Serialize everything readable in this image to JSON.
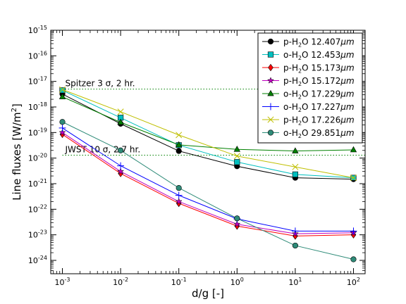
{
  "chart_data": {
    "type": "line",
    "xscale": "log",
    "yscale": "log",
    "xlabel": "d/g [-]",
    "ylabel_main": "Line fluxes [W/m",
    "ylabel_sup": "2",
    "ylabel_tail": "]",
    "xlim": [
      0.001,
      100
    ],
    "ylim": [
      3e-25,
      1e-15
    ],
    "xticks": [
      {
        "value": 0.001,
        "base": "10",
        "exp": "-3"
      },
      {
        "value": 0.01,
        "base": "10",
        "exp": "-2"
      },
      {
        "value": 0.1,
        "base": "10",
        "exp": "-1"
      },
      {
        "value": 1,
        "base": "10",
        "exp": "0"
      },
      {
        "value": 10,
        "base": "10",
        "exp": "1"
      },
      {
        "value": 100,
        "base": "10",
        "exp": "2"
      }
    ],
    "yticks": [
      {
        "value": 1e-24,
        "base": "10",
        "exp": "-24"
      },
      {
        "value": 1e-23,
        "base": "10",
        "exp": "-23"
      },
      {
        "value": 1e-22,
        "base": "10",
        "exp": "-22"
      },
      {
        "value": 1e-21,
        "base": "10",
        "exp": "-21"
      },
      {
        "value": 1e-20,
        "base": "10",
        "exp": "-20"
      },
      {
        "value": 1e-19,
        "base": "10",
        "exp": "-19"
      },
      {
        "value": 1e-18,
        "base": "10",
        "exp": "-18"
      },
      {
        "value": 1e-17,
        "base": "10",
        "exp": "-17"
      },
      {
        "value": 1e-16,
        "base": "10",
        "exp": "-16"
      },
      {
        "value": 1e-15,
        "base": "10",
        "exp": "-15"
      }
    ],
    "x": [
      0.001,
      0.01,
      0.1,
      1,
      10,
      100
    ],
    "reference_lines": [
      {
        "label": "Spitzer 3 σ, 2 hr.",
        "y": 5e-18,
        "color": "#008000"
      },
      {
        "label": "JWST 10 σ, 2.7 hr.",
        "y": 1.3e-20,
        "color": "#008000"
      }
    ],
    "legend_position": "top-right",
    "series": [
      {
        "prefix": "p-H",
        "sub": "2",
        "mid": "O 12.407",
        "unit": "μm",
        "color": "#000000",
        "marker": "circle",
        "values": [
          3.2e-18,
          2.2e-19,
          1.9e-20,
          4.8e-21,
          1.7e-21,
          1.5e-21
        ]
      },
      {
        "prefix": "o-H",
        "sub": "2",
        "mid": "O 12.453",
        "unit": "μm",
        "color": "#00bfbf",
        "marker": "square",
        "values": [
          4.5e-18,
          3.8e-19,
          3.2e-20,
          7e-21,
          2.3e-21,
          1.7e-21
        ]
      },
      {
        "prefix": "p-H",
        "sub": "2",
        "mid": "O 15.173",
        "unit": "μm",
        "color": "#ff0000",
        "marker": "diamond",
        "values": [
          8.5e-20,
          2.5e-21,
          1.7e-22,
          2.2e-23,
          9e-24,
          1e-23
        ]
      },
      {
        "prefix": "p-H",
        "sub": "2",
        "mid": "O 15.172",
        "unit": "μm",
        "color": "#bf00bf",
        "marker": "star",
        "values": [
          1e-19,
          3e-21,
          2e-22,
          2.6e-23,
          1.1e-23,
          1.2e-23
        ]
      },
      {
        "prefix": "o-H",
        "sub": "2",
        "mid": "O 17.229",
        "unit": "μm",
        "color": "#008000",
        "marker": "triangle",
        "values": [
          2.5e-18,
          2.5e-19,
          3.3e-20,
          2.2e-20,
          1.9e-20,
          2.1e-20
        ]
      },
      {
        "prefix": "o-H",
        "sub": "2",
        "mid": "O 17.227",
        "unit": "μm",
        "color": "#0000ff",
        "marker": "plus",
        "values": [
          1.5e-19,
          5e-21,
          3.5e-22,
          4.2e-23,
          1.4e-23,
          1.4e-23
        ]
      },
      {
        "prefix": "p-H",
        "sub": "2",
        "mid": "O 17.226",
        "unit": "μm",
        "color": "#bfbf00",
        "marker": "x",
        "values": [
          4.8e-18,
          6.5e-19,
          8e-20,
          1.2e-20,
          4.5e-21,
          1.7e-21
        ]
      },
      {
        "prefix": "o-H",
        "sub": "2",
        "mid": "O 29.851",
        "unit": "μm",
        "color": "#2e8b78",
        "marker": "circle",
        "values": [
          2.6e-19,
          2e-20,
          6.8e-22,
          4.4e-23,
          3.8e-24,
          1.1e-24
        ]
      }
    ]
  }
}
